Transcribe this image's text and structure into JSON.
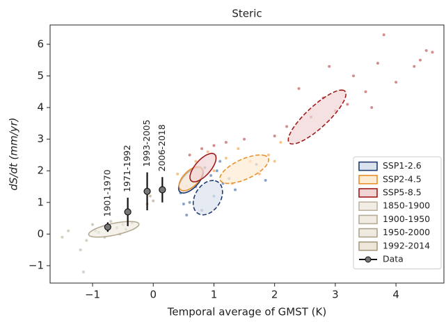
{
  "chart_data": {
    "type": "scatter-ellipse",
    "title": "Steric",
    "xlabel": "Temporal average of GMST (K)",
    "ylabel": "dS/dt (mm/yr)",
    "xlim": [
      -1.7,
      4.79
    ],
    "ylim": [
      -1.55,
      6.61
    ],
    "xticks": [
      {
        "value": -1,
        "label": "−1"
      },
      0,
      1,
      2,
      3,
      4
    ],
    "yticks": [
      {
        "value": -1,
        "label": "−1"
      },
      0,
      1,
      2,
      3,
      4,
      5,
      6
    ],
    "legend": "lower right",
    "series": [
      {
        "name": "SSP1-2.6",
        "color": "#dbe3ee",
        "edgecolor": "#1f3a6e",
        "point_color": "#6b8cb8",
        "x": [
          0.45,
          0.5,
          0.55,
          0.7,
          0.85,
          0.95,
          1.05,
          1.15,
          1.25,
          1.35,
          0.8,
          1.0,
          1.7,
          1.85,
          0.6,
          1.1
        ],
        "y": [
          1.3,
          0.95,
          0.6,
          1.5,
          2.1,
          1.85,
          2.0,
          1.6,
          1.75,
          1.4,
          0.75,
          1.2,
          2.2,
          1.7,
          1.0,
          2.3
        ],
        "ellipses": [
          {
            "cx": 0.62,
            "cy": 1.7,
            "width": 0.85,
            "height": 0.3,
            "angle": 70,
            "linestyle": "solid"
          },
          {
            "cx": 0.9,
            "cy": 1.15,
            "width": 1.1,
            "height": 0.45,
            "angle": 80,
            "linestyle": "dashed"
          }
        ]
      },
      {
        "name": "SSP2-4.5",
        "color": "#fdebd3",
        "edgecolor": "#e8902c",
        "point_color": "#f5b36e",
        "x": [
          0.4,
          0.55,
          0.7,
          0.9,
          1.2,
          1.4,
          1.6,
          1.75,
          1.9,
          1.3,
          1.0,
          2.1,
          2.0,
          0.75
        ],
        "y": [
          1.9,
          1.5,
          2.3,
          2.6,
          2.4,
          2.7,
          2.3,
          1.9,
          2.5,
          1.6,
          2.0,
          2.9,
          2.3,
          1.65
        ],
        "ellipses": [
          {
            "cx": 0.62,
            "cy": 1.75,
            "width": 0.8,
            "height": 0.3,
            "angle": 70,
            "linestyle": "solid"
          },
          {
            "cx": 1.5,
            "cy": 2.05,
            "width": 1.1,
            "height": 0.5,
            "angle": 50,
            "linestyle": "dashed"
          }
        ]
      },
      {
        "name": "SSP5-8.5",
        "color": "#f1d4d4",
        "edgecolor": "#a01818",
        "point_color": "#c87070",
        "x": [
          0.6,
          0.8,
          1.0,
          1.2,
          1.5,
          2.0,
          2.2,
          2.4,
          2.6,
          2.8,
          3.0,
          3.2,
          3.3,
          3.6,
          3.7,
          3.8,
          4.3,
          4.4,
          4.5,
          4.6,
          3.5,
          2.9,
          4.0
        ],
        "y": [
          2.5,
          2.7,
          2.8,
          2.9,
          3.0,
          3.1,
          3.4,
          4.6,
          3.7,
          4.3,
          3.9,
          4.1,
          5.0,
          4.0,
          5.4,
          6.3,
          5.3,
          5.5,
          5.8,
          5.75,
          4.5,
          5.3,
          4.8
        ],
        "ellipses": [
          {
            "cx": 0.82,
            "cy": 2.1,
            "width": 0.95,
            "height": 0.3,
            "angle": 70,
            "linestyle": "solid"
          },
          {
            "cx": 2.7,
            "cy": 3.7,
            "width": 1.9,
            "height": 0.45,
            "angle": 63,
            "linestyle": "dashed"
          }
        ]
      },
      {
        "name": "1850-1900",
        "color": "#f2eee6",
        "edgecolor": "#bdb39f",
        "point_color": "#cbc4b2",
        "x": [
          -1.5,
          -1.4,
          -1.2,
          -1.1,
          -1.15
        ],
        "y": [
          -0.1,
          0.1,
          -0.5,
          -0.2,
          -1.2
        ],
        "ellipses": []
      },
      {
        "name": "1900-1950",
        "color": "#f0ece3",
        "edgecolor": "#b5ab95",
        "point_color": "#c6bea9",
        "x": [
          -1.0,
          -0.9,
          -0.8,
          -0.95,
          -0.7
        ],
        "y": [
          0.3,
          0.05,
          -0.1,
          0.1,
          0.4
        ],
        "ellipses": [
          {
            "cx": -0.65,
            "cy": 0.15,
            "width": 0.9,
            "height": 0.35,
            "angle": 25,
            "linestyle": "solid"
          }
        ]
      },
      {
        "name": "1950-2000",
        "color": "#efeadf",
        "edgecolor": "#aea38b",
        "point_color": "#c2b9a2",
        "x": [
          -0.6,
          -0.5,
          -0.55,
          -0.35,
          -0.45
        ],
        "y": [
          0.2,
          0.3,
          0.0,
          0.35,
          0.15
        ],
        "ellipses": []
      },
      {
        "name": "1992-2014",
        "color": "#ede7da",
        "edgecolor": "#a89b80",
        "point_color": "#bfb59c",
        "x": [
          -0.1,
          -0.05,
          0.0,
          -0.08
        ],
        "y": [
          0.95,
          1.2,
          1.05,
          1.3
        ],
        "ellipses": []
      }
    ],
    "data": {
      "name": "Data",
      "color": "#777777",
      "x": [
        -0.75,
        -0.42,
        -0.1,
        0.15
      ],
      "y": [
        0.22,
        0.7,
        1.35,
        1.4
      ],
      "yerr": [
        0.15,
        0.45,
        0.6,
        0.4
      ],
      "labels": [
        "1901-1970",
        "1971-1992",
        "1993-2005",
        "2006-2018"
      ]
    }
  }
}
